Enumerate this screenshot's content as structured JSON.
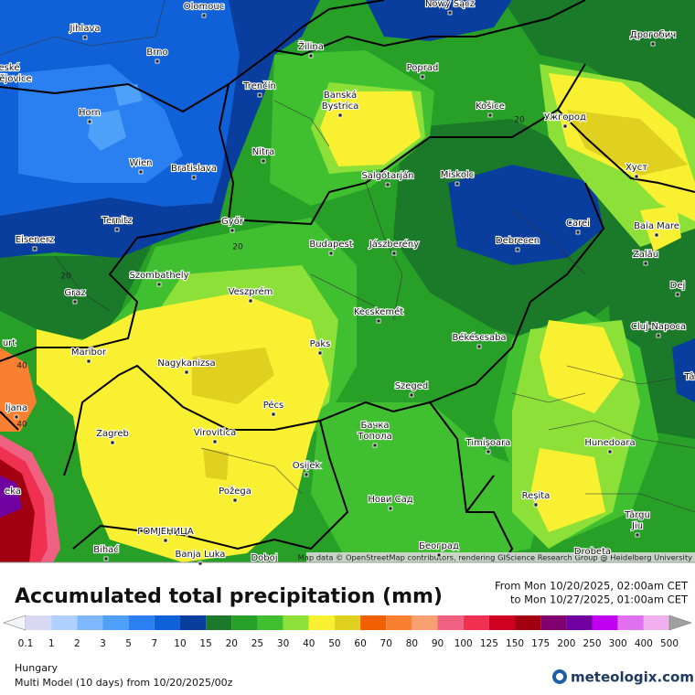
{
  "map": {
    "cities": [
      "Olomouc",
      "Nowy Sącz",
      "Jihlava",
      "Brno",
      "Žilina",
      "Дрогобич",
      "Poprad",
      "eské",
      "ějovice",
      "Trenčín",
      "Banská",
      "Bystrica",
      "Košice",
      "Ужгород",
      "Horn",
      "Wien",
      "Bratislava",
      "Nitra",
      "Salgótarján",
      "Miskolc",
      "Хуст",
      "Ternitz",
      "Győr",
      "Carei",
      "Baia Mare",
      "Eisenerz",
      "Budapest",
      "Jászberény",
      "Debrecen",
      "Szombathely",
      "Zalău",
      "Graz",
      "Veszprém",
      "Dej",
      "Kecskemét",
      "Cluj-Napoca",
      "urt",
      "Maribor",
      "Paks",
      "Békéscsaba",
      "Nagykanizsa",
      "Pécs",
      "Szeged",
      "ljana",
      "Tâ",
      "Zagreb",
      "Virovitica",
      "Бачка",
      "Топола",
      "Timișoara",
      "Hunedoara",
      "Osijek",
      "Požega",
      "Нови Сад",
      "Reșita",
      "Târgu",
      "Jiu",
      "ГОМЈЕНИЦА",
      "Bihać",
      "Banja Luka",
      "Doboj",
      "Београд",
      "Drobeta",
      "eka"
    ],
    "contours": [
      20,
      20,
      20,
      40,
      40
    ],
    "attribution": "Map data © OpenStreetMap contributors, rendering GIScience Research Group @ Heidelberg University"
  },
  "legend": {
    "title": "Accumulated total precipitation (mm)",
    "period_from": "From Mon 10/20/2025, 02:00am CET",
    "period_to": "to Mon 10/27/2025, 01:00am CET",
    "levels": [
      0.1,
      1,
      2,
      3,
      5,
      7,
      10,
      15,
      20,
      25,
      30,
      40,
      50,
      60,
      70,
      80,
      90,
      100,
      125,
      150,
      175,
      200,
      250,
      300,
      400,
      500
    ],
    "colors": [
      "#f4f4fb",
      "#d8d8f2",
      "#b0d0ff",
      "#80b8ff",
      "#4ea0f8",
      "#2a80f0",
      "#1060d8",
      "#0a3e9e",
      "#1a7a2a",
      "#28a028",
      "#40c030",
      "#8ce038",
      "#f8f030",
      "#e0d020",
      "#f06000",
      "#f88030",
      "#f8a070",
      "#f06080",
      "#f03050",
      "#d00020",
      "#a00010",
      "#800070",
      "#7000a0",
      "#c000f0",
      "#e070f0",
      "#f0b0f0",
      "#f8e8f8",
      "#a0a0a0"
    ]
  },
  "footer": {
    "region": "Hungary",
    "model": "Multi Model (10 days) from 10/20/2025/00z",
    "brand": "meteologix.com"
  }
}
